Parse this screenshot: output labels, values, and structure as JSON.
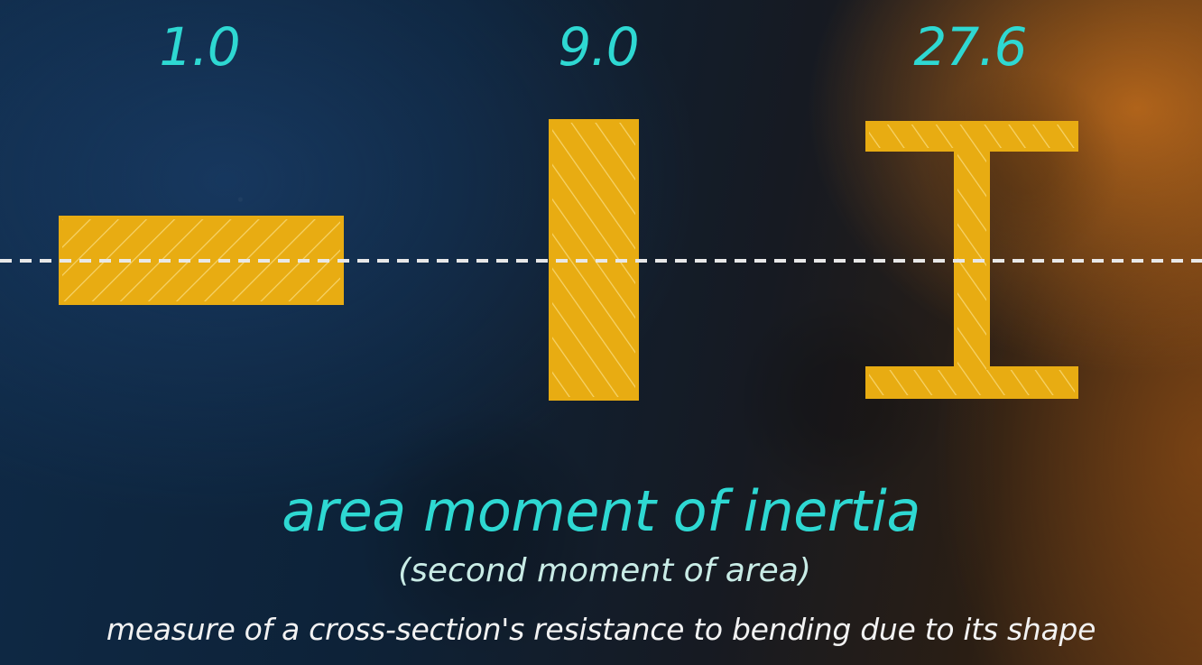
{
  "values": {
    "flat_rectangle": "1.0",
    "tall_rectangle": "9.0",
    "i_beam": "27.6"
  },
  "title": "area moment of inertia",
  "subtitle": "(second moment of area)",
  "caption": "measure of a cross-section's resistance to bending due to its shape",
  "colors": {
    "accent": "#2ed8d2",
    "shape_fill": "#e8ac12",
    "shape_hatch": "#f6d36a",
    "axis_line": "#e8e8e8"
  }
}
